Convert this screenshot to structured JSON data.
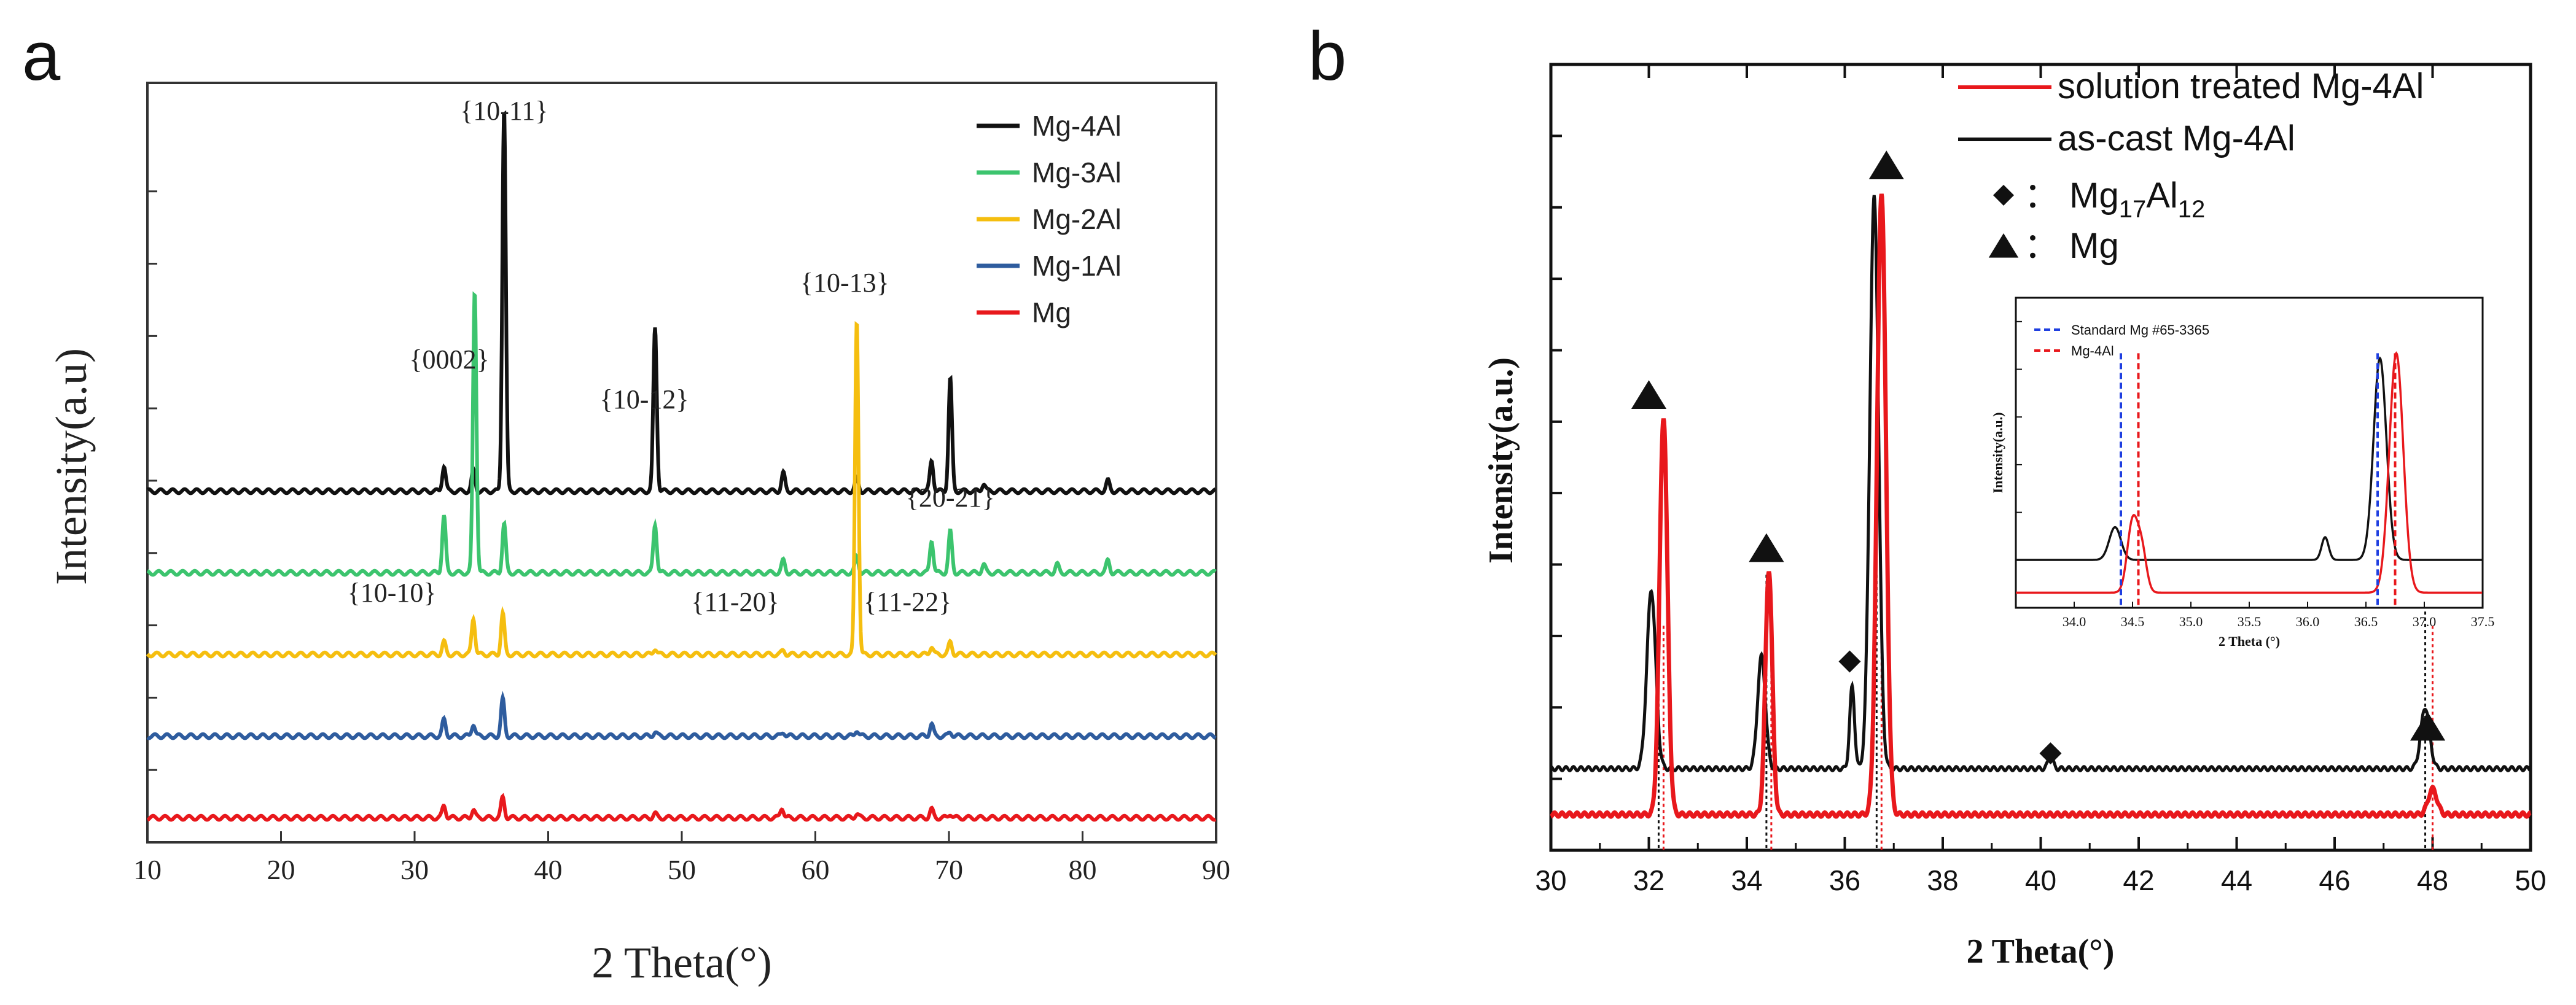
{
  "figure": {
    "label_a": "a",
    "label_b": "b"
  },
  "chart_data": [
    {
      "id": "a",
      "type": "line",
      "xlabel": "2 Theta(°)",
      "ylabel": "Intensity(a.u)",
      "xlim": [
        10,
        90
      ],
      "xticks": [
        10,
        20,
        30,
        40,
        50,
        60,
        70,
        80,
        90
      ],
      "legend_position": "top-right",
      "series": [
        {
          "name": "Mg-4Al",
          "color": "#111111",
          "offset": 8.0,
          "scale": 1.25,
          "peaks": [
            [
              32.2,
              0.5
            ],
            [
              34.4,
              0.4
            ],
            [
              36.7,
              7.5
            ],
            [
              48.0,
              3.2
            ],
            [
              57.6,
              0.35
            ],
            [
              63.1,
              0.25
            ],
            [
              68.7,
              0.6
            ],
            [
              70.1,
              2.2
            ],
            [
              72.6,
              0.15
            ],
            [
              81.9,
              0.2
            ]
          ]
        },
        {
          "name": "Mg-3Al",
          "color": "#3CC46E",
          "offset": 6.0,
          "scale": 1.0,
          "peaks": [
            [
              32.2,
              1.4
            ],
            [
              34.5,
              6.9
            ],
            [
              36.7,
              1.2
            ],
            [
              48.0,
              1.2
            ],
            [
              57.6,
              0.3
            ],
            [
              63.1,
              0.4
            ],
            [
              68.7,
              0.8
            ],
            [
              70.1,
              1.0
            ],
            [
              72.6,
              0.2
            ],
            [
              78.1,
              0.2
            ],
            [
              81.9,
              0.3
            ]
          ]
        },
        {
          "name": "Mg-2Al",
          "color": "#F5BE0F",
          "offset": 4.0,
          "scale": 1.0,
          "peaks": [
            [
              32.2,
              0.3
            ],
            [
              34.4,
              0.9
            ],
            [
              36.6,
              1.0
            ],
            [
              48.0,
              0.15
            ],
            [
              57.6,
              0.1
            ],
            [
              63.1,
              8.2
            ],
            [
              68.7,
              0.2
            ],
            [
              70.1,
              0.3
            ]
          ]
        },
        {
          "name": "Mg-1Al",
          "color": "#2E5C9E",
          "offset": 2.0,
          "scale": 1.0,
          "peaks": [
            [
              32.2,
              0.4
            ],
            [
              34.4,
              0.3
            ],
            [
              36.6,
              0.9
            ],
            [
              48.0,
              0.1
            ],
            [
              57.6,
              0.1
            ],
            [
              63.1,
              0.15
            ],
            [
              68.7,
              0.3
            ],
            [
              70.1,
              0.1
            ]
          ]
        },
        {
          "name": "Mg",
          "color": "#E8181C",
          "offset": 0.0,
          "scale": 1.0,
          "peaks": [
            [
              32.2,
              0.3
            ],
            [
              34.4,
              0.2
            ],
            [
              36.6,
              0.5
            ],
            [
              48.0,
              0.1
            ],
            [
              57.5,
              0.25
            ],
            [
              63.1,
              0.1
            ],
            [
              68.7,
              0.2
            ],
            [
              70.1,
              0.1
            ]
          ]
        }
      ],
      "annotations": [
        {
          "text": "{10-11}",
          "x": 36.7
        },
        {
          "text": "{0002}",
          "x": 34.3
        },
        {
          "text": "{10-12}",
          "x": 48.0
        },
        {
          "text": "{10-13}",
          "x": 63.1
        },
        {
          "text": "{20-21}",
          "x": 70.1
        },
        {
          "text": "{10-10}",
          "x": 32.2
        },
        {
          "text": "{11-20}",
          "x": 57.6
        },
        {
          "text": "{11-22}",
          "x": 68.7
        }
      ]
    },
    {
      "id": "b",
      "type": "line",
      "xlabel": "2 Theta(°)",
      "ylabel": "Intensity(a.u.)",
      "xlim": [
        30,
        50
      ],
      "xticks": [
        30,
        32,
        34,
        36,
        38,
        40,
        42,
        44,
        46,
        48,
        50
      ],
      "legend_position": "top-right",
      "series": [
        {
          "name": "solution treated Mg-4Al",
          "color": "#E8181C",
          "baseline": 0.3,
          "peaks": [
            [
              32.3,
              7.8,
              0.08
            ],
            [
              34.45,
              4.8,
              0.07
            ],
            [
              36.75,
              12.2,
              0.09
            ],
            [
              48.0,
              0.5,
              0.09
            ]
          ]
        },
        {
          "name": "as-cast Mg-4Al",
          "color": "#111111",
          "baseline": 1.2,
          "peaks": [
            [
              32.05,
              3.5,
              0.09
            ],
            [
              34.3,
              2.2,
              0.08
            ],
            [
              36.15,
              1.6,
              0.05
            ],
            [
              36.6,
              11.2,
              0.09
            ],
            [
              40.2,
              0.25,
              0.05
            ],
            [
              47.85,
              1.2,
              0.09
            ]
          ]
        }
      ],
      "legend_markers": [
        {
          "symbol": "diamond",
          "label_main": "Mg",
          "sub1": "17",
          "mid": "Al",
          "sub2": "12",
          "sep": "："
        },
        {
          "symbol": "triangle",
          "label_main": "Mg",
          "sep": "："
        }
      ],
      "markers": [
        {
          "symbol": "triangle",
          "x": 32.0,
          "y": 8.5
        },
        {
          "symbol": "triangle",
          "x": 34.4,
          "y": 5.5
        },
        {
          "symbol": "triangle",
          "x": 36.85,
          "y": 13.0
        },
        {
          "symbol": "triangle",
          "x": 47.9,
          "y": 2.0
        },
        {
          "symbol": "diamond",
          "x": 36.1,
          "y": 3.3
        },
        {
          "symbol": "diamond",
          "x": 40.2,
          "y": 1.5
        }
      ],
      "reference_lines_black": [
        32.2,
        34.4,
        36.65,
        47.85
      ],
      "reference_lines_red": [
        32.3,
        34.5,
        36.75,
        48.0
      ],
      "inset": {
        "xlabel": "2 Theta (°)",
        "ylabel": "Intensity(a.u.)",
        "xlim": [
          33.5,
          37.5
        ],
        "xticks": [
          "34.0",
          "34.5",
          "35.0",
          "35.5",
          "36.0",
          "36.5",
          "37.0",
          "37.5"
        ],
        "legend": [
          {
            "label": "Standard Mg #65-3365",
            "color": "#1F3FE0"
          },
          {
            "label": "Mg-4Al",
            "color": "#E8181C"
          }
        ],
        "standard_lines": [
          34.4,
          36.6
        ],
        "mg4al_lines": [
          34.55,
          36.75
        ]
      }
    }
  ]
}
